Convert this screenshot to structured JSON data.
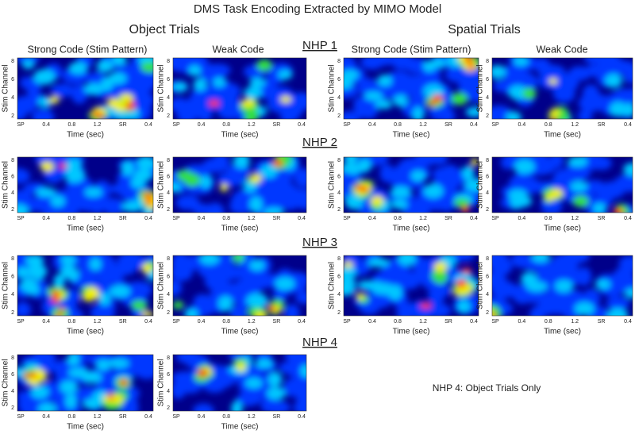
{
  "title": "DMS Task Encoding Extracted by MIMO Model",
  "column_groups": [
    {
      "title": "Object Trials",
      "columns": [
        "Strong Code (Stim Pattern)",
        "Weak Code"
      ]
    },
    {
      "title": "Spatial Trials",
      "columns": [
        "Strong Code (Stim Pattern)",
        "Weak Code"
      ]
    }
  ],
  "rows": [
    {
      "label": "NHP 1"
    },
    {
      "label": "NHP 2"
    },
    {
      "label": "NHP 3"
    },
    {
      "label": "NHP 4"
    }
  ],
  "panel_axes": {
    "y_label": "Stim Channel",
    "y_ticks": [
      "2",
      "4",
      "6",
      "8"
    ],
    "x_label": "Time (sec)",
    "x_ticks": [
      "SP",
      "0.4",
      "0.8",
      "1.2",
      "SR",
      "0.4"
    ]
  },
  "note": "NHP 4: Object Trials Only"
}
